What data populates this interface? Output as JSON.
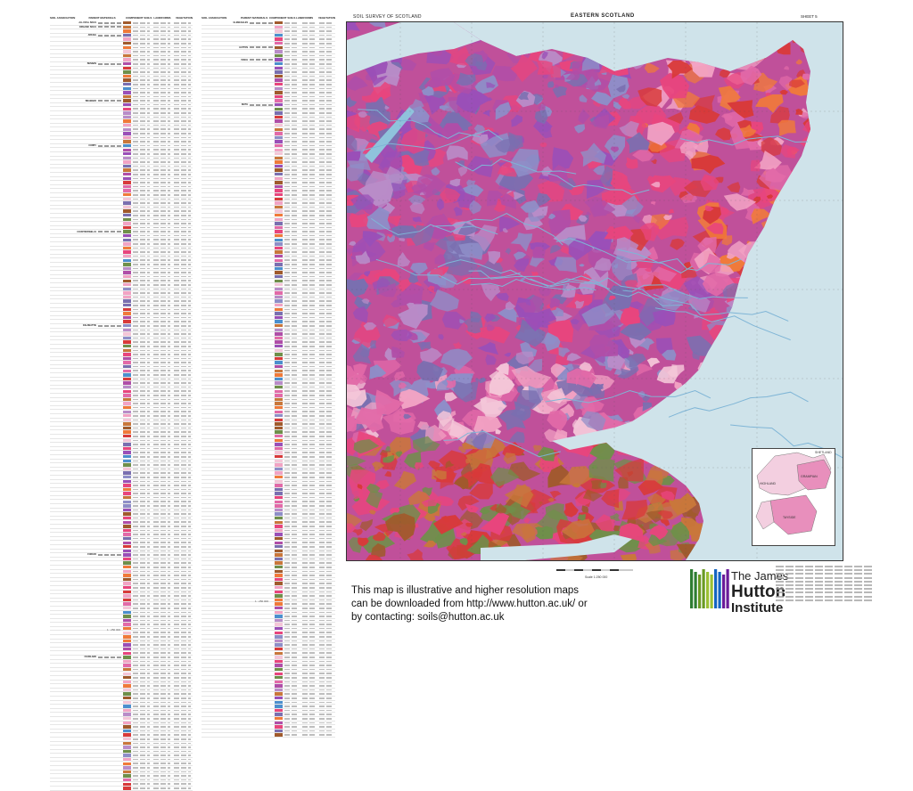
{
  "map": {
    "header_left": "SOIL SURVEY OF SCOTLAND",
    "title": "EASTERN SCOTLAND",
    "sheet": "SHEET 5"
  },
  "legend": {
    "headers": [
      "SOIL ASSOCIATION",
      "PARENT MATERIALS",
      "COMPONENT SOILS",
      "LANDFORMS",
      "VEGETATION"
    ],
    "left_groups": [
      "ALLUVIAL SOILS",
      "ORGANIC SOILS",
      "",
      "ARKAIG",
      "",
      "",
      "",
      "",
      "",
      "",
      "BENNAN",
      "",
      "",
      "",
      "",
      "",
      "",
      "",
      "",
      "BRAEMAR",
      "",
      "",
      "",
      "",
      "",
      "",
      "",
      "",
      "",
      "",
      "CORBY",
      "",
      "",
      "",
      "",
      "",
      "",
      "",
      "",
      "",
      "",
      "",
      "",
      "",
      "",
      "",
      "",
      "",
      "",
      "",
      "",
      "COUNTESSWELLS",
      "",
      "",
      "",
      "",
      "",
      "",
      "",
      "",
      "",
      "",
      "",
      "",
      "",
      "",
      "",
      "",
      "",
      "",
      "",
      "",
      "",
      "",
      "DALBEATTIE",
      "",
      "",
      "",
      "",
      "",
      "",
      "",
      "",
      "",
      "",
      "",
      "",
      "",
      "",
      "",
      "",
      "",
      "",
      "",
      "",
      "",
      "",
      "",
      "",
      "",
      "",
      "",
      "",
      "",
      "",
      "",
      "",
      "",
      "",
      "",
      "",
      "",
      "",
      "",
      "",
      "",
      "",
      "",
      "",
      "",
      "",
      "",
      "",
      "",
      "",
      "",
      "",
      "",
      "",
      "",
      "FORFAR",
      "",
      "",
      "",
      "",
      "",
      "",
      "",
      "",
      "",
      "",
      "",
      "",
      "",
      "",
      "",
      "",
      "",
      "",
      "",
      "",
      "",
      "",
      "",
      "",
      "FOUDLAND",
      "",
      "",
      "",
      "",
      "",
      "",
      "",
      "",
      "",
      "",
      "",
      "",
      "",
      "",
      "",
      "",
      "",
      "",
      "",
      "",
      "",
      "",
      "",
      "",
      "",
      "",
      "",
      "",
      "",
      "",
      "",
      "",
      "",
      "",
      "",
      "",
      "",
      "",
      "",
      "",
      "",
      "",
      "",
      "",
      "",
      "",
      "",
      "",
      "",
      "",
      "",
      "",
      "",
      "",
      "",
      "",
      "",
      "",
      "",
      "",
      "",
      "",
      "",
      "",
      "",
      "",
      "",
      "",
      "",
      "",
      "",
      "",
      "",
      "",
      "",
      "",
      "",
      "",
      "",
      "",
      "",
      "",
      "",
      "",
      "",
      "",
      "",
      "",
      "",
      "",
      "",
      "",
      "",
      "",
      "",
      "",
      "",
      "",
      ""
    ],
    "right_groups": [
      "GLENEAGLES",
      "",
      "",
      "",
      "",
      "",
      "HATTON",
      "",
      "",
      "INSCH",
      "",
      "",
      "",
      "",
      "",
      "",
      "",
      "",
      "",
      "",
      "KEITH",
      "",
      "",
      "",
      "",
      "",
      "",
      "",
      "",
      "",
      "",
      "",
      "",
      "",
      "",
      "",
      "",
      "",
      "",
      "",
      "",
      "",
      "",
      "",
      "",
      "",
      "",
      "",
      "",
      "",
      "",
      "",
      "",
      "",
      "",
      "",
      "",
      "",
      "",
      "",
      "",
      "",
      "",
      "",
      "",
      "",
      "",
      "",
      "",
      "",
      "",
      "",
      "",
      "",
      "",
      "",
      "",
      "",
      "",
      "",
      "",
      "",
      "",
      "",
      "",
      "",
      "",
      "",
      "",
      "",
      "",
      "",
      "",
      "",
      "",
      "",
      "",
      "",
      "",
      "",
      "",
      "",
      "",
      "",
      "",
      "",
      "",
      "",
      "",
      "",
      "",
      "",
      "",
      "",
      "",
      "",
      "",
      "",
      "",
      "",
      "",
      "",
      "",
      "",
      "",
      "",
      "",
      "",
      "",
      "",
      "",
      "",
      "",
      "",
      "",
      "",
      "",
      "",
      "",
      "",
      "",
      "",
      "",
      "",
      "",
      "",
      "",
      "",
      "",
      "",
      "",
      "",
      "",
      "",
      "",
      "",
      "",
      "",
      "",
      "",
      "",
      "",
      "",
      "",
      "",
      "",
      "",
      "",
      "",
      "",
      "",
      "",
      "",
      "",
      "",
      "",
      "",
      "",
      "",
      "",
      "",
      "",
      "",
      "",
      "",
      "",
      "",
      "",
      "",
      "",
      "",
      "",
      "",
      "",
      "",
      "",
      "",
      "",
      "",
      "",
      "",
      "",
      "",
      "",
      "",
      "",
      "",
      "",
      "",
      ""
    ],
    "footer_left": "1 : 250 000",
    "footer_right": "1 : 250 000"
  },
  "inset": {
    "labels": [
      "SHETLAND",
      "HIGHLAND",
      "GRAMPIAN",
      "TAYSIDE"
    ]
  },
  "scale": {
    "label": "Scale 1:250 000"
  },
  "credit_text": "This map is illustrative and higher resolution maps can be downloaded from http://www.hutton.ac.uk/ or by contacting: soils@hutton.ac.uk",
  "logo": {
    "line1": "The James",
    "line2": "Hutton",
    "line3": "Institute",
    "colors": [
      "#2e7d32",
      "#6a9a24",
      "#9bc034",
      "#1565c0",
      "#6a1b9a"
    ]
  },
  "colors": {
    "sea": "#cfe3ea",
    "palette": [
      "#e8457d",
      "#f07a3a",
      "#9a4fb8",
      "#7a6fb0",
      "#b04ea8",
      "#e26aa8",
      "#f2a3c4",
      "#a05a2c",
      "#c9773b",
      "#6f8f4a",
      "#4c8fce",
      "#d83a3a",
      "#8e8ec8",
      "#f4c6d8",
      "#b98cc8"
    ]
  }
}
